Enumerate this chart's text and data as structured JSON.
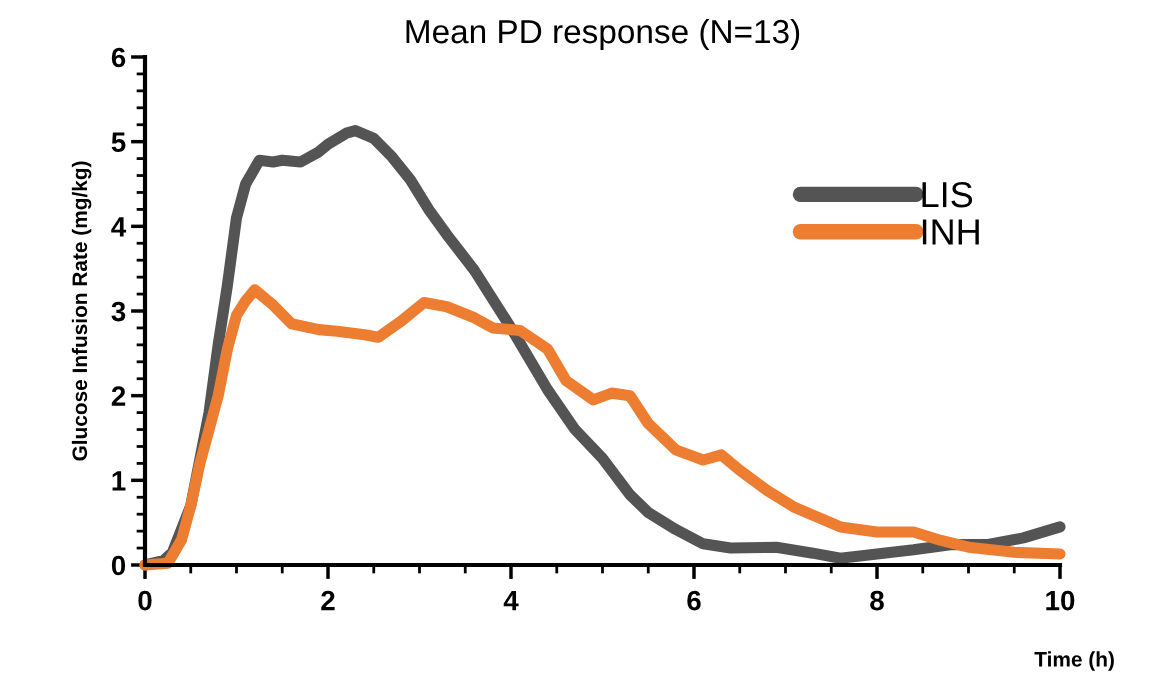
{
  "chart_data": {
    "type": "line",
    "title": "Mean PD response (N=13)",
    "xlabel": "Time (h)",
    "ylabel": "Glucose Infusion Rate (mg/kg)",
    "xlim": [
      0,
      10
    ],
    "xticks": [
      0,
      2,
      4,
      6,
      8,
      10
    ],
    "ylim": [
      0,
      6
    ],
    "yticks": [
      0,
      1,
      2,
      3,
      4,
      5,
      6
    ],
    "grid": false,
    "legend": "top right",
    "marker": "none",
    "line_style": "solid",
    "series": [
      {
        "name": "LIS",
        "color": "#545454",
        "x": [
          0,
          0.2,
          0.3,
          0.5,
          0.7,
          0.8,
          0.9,
          1.0,
          1.1,
          1.25,
          1.4,
          1.5,
          1.7,
          1.9,
          2.0,
          2.2,
          2.3,
          2.5,
          2.7,
          2.9,
          3.1,
          3.3,
          3.6,
          4.0,
          4.4,
          4.7,
          5.0,
          5.3,
          5.5,
          5.8,
          6.1,
          6.4,
          6.9,
          7.3,
          7.6,
          8.0,
          8.4,
          8.8,
          9.2,
          9.6,
          10
        ],
        "values": [
          0,
          0.05,
          0.15,
          0.7,
          1.8,
          2.6,
          3.3,
          4.1,
          4.5,
          4.78,
          4.76,
          4.78,
          4.76,
          4.88,
          4.97,
          5.1,
          5.13,
          5.04,
          4.82,
          4.55,
          4.2,
          3.9,
          3.48,
          2.8,
          2.07,
          1.6,
          1.26,
          0.83,
          0.62,
          0.42,
          0.25,
          0.2,
          0.21,
          0.14,
          0.08,
          0.13,
          0.18,
          0.24,
          0.24,
          0.32,
          0.45
        ]
      },
      {
        "name": "INH",
        "color": "#ed7d31",
        "x": [
          0,
          0.25,
          0.4,
          0.5,
          0.6,
          0.7,
          0.8,
          0.9,
          1.0,
          1.1,
          1.2,
          1.4,
          1.6,
          1.9,
          2.1,
          2.4,
          2.55,
          2.8,
          3.05,
          3.3,
          3.6,
          3.8,
          4.1,
          4.4,
          4.6,
          4.9,
          5.1,
          5.3,
          5.5,
          5.8,
          6.1,
          6.3,
          6.5,
          6.8,
          7.1,
          7.6,
          8.0,
          8.4,
          8.7,
          9.0,
          9.5,
          10
        ],
        "values": [
          0,
          0.02,
          0.3,
          0.7,
          1.2,
          1.6,
          2.0,
          2.55,
          2.95,
          3.12,
          3.25,
          3.07,
          2.85,
          2.78,
          2.76,
          2.72,
          2.69,
          2.88,
          3.1,
          3.05,
          2.92,
          2.8,
          2.77,
          2.55,
          2.18,
          1.95,
          2.03,
          2.0,
          1.67,
          1.36,
          1.24,
          1.3,
          1.12,
          0.88,
          0.68,
          0.45,
          0.39,
          0.39,
          0.29,
          0.21,
          0.15,
          0.13
        ]
      }
    ]
  }
}
